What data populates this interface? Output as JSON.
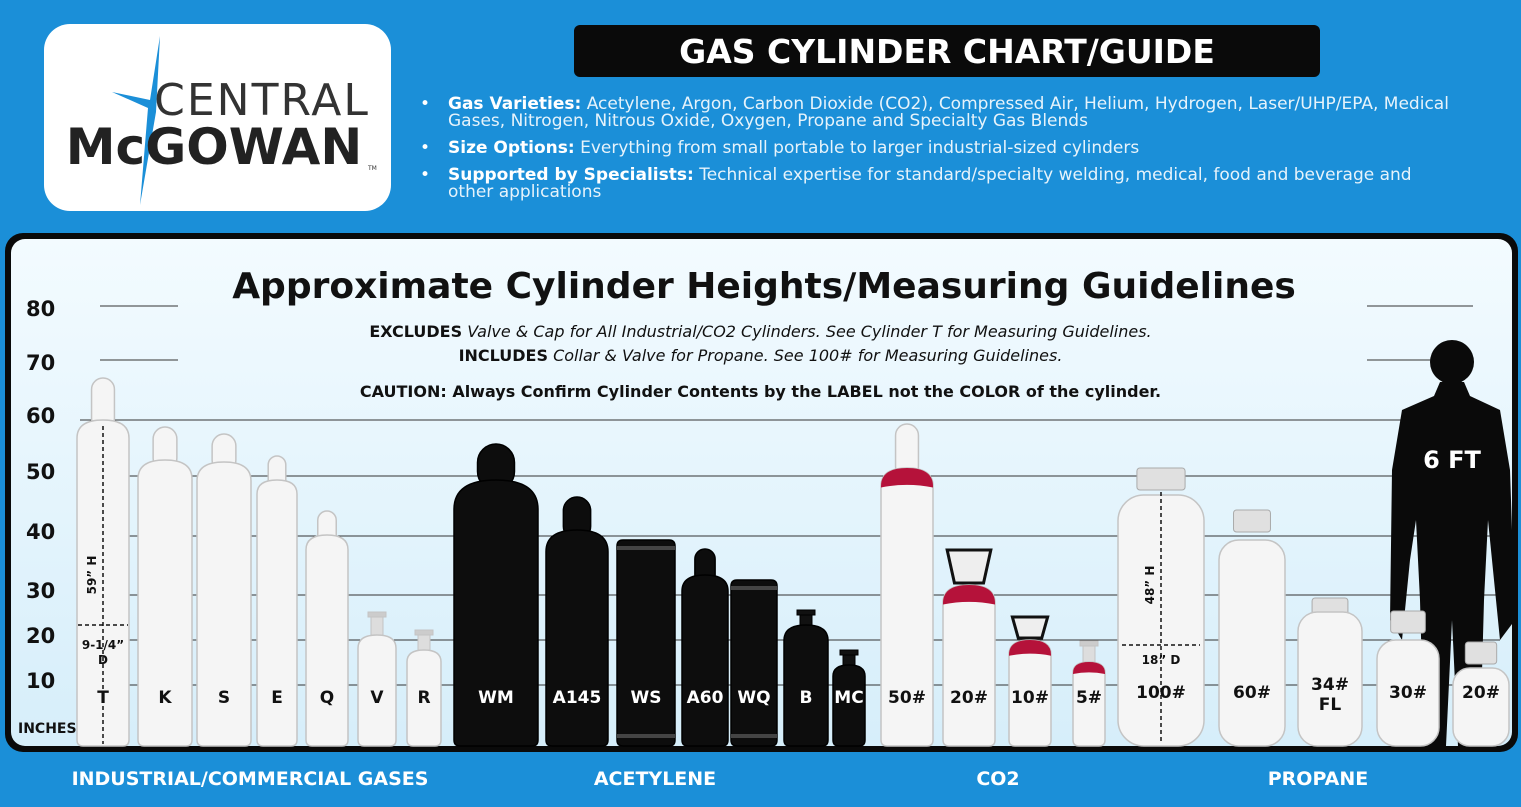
{
  "logo": {
    "line1": "CENTRAL",
    "line2": "McGOWAN",
    "tm": "TM"
  },
  "header": {
    "title": "GAS CYLINDER CHART/GUIDE"
  },
  "bullets": [
    {
      "head": "Gas Varieties:",
      "text": "Acetylene, Argon, Carbon Dioxide (CO2), Compressed Air, Helium, Hydrogen, Laser/UHP/EPA, Medical Gases, Nitrogen, Nitrous Oxide, Oxygen, Propane and Specialty Gas Blends"
    },
    {
      "head": "Size Options:",
      "text": "Everything from small portable to larger industrial-sized cylinders"
    },
    {
      "head": "Supported by Specialists:",
      "text": "Technical expertise for standard/specialty welding, medical, food and beverage and other applications"
    }
  ],
  "panel": {
    "title": "Approximate Cylinder Heights/Measuring Guidelines",
    "notes": [
      {
        "bold": "EXCLUDES",
        "text": "Valve & Cap for All Industrial/CO2 Cylinders.  See Cylinder T for Measuring Guidelines."
      },
      {
        "bold": "INCLUDES",
        "text": "Collar & Valve for Propane.  See 100# for Measuring Guidelines."
      }
    ],
    "caution": "CAUTION: Always Confirm Cylinder Contents by the LABEL not the COLOR of the cylinder.",
    "scale": [
      "80",
      "70",
      "60",
      "50",
      "40",
      "30",
      "20",
      "10"
    ],
    "scale_unit": "INCHES",
    "measures": {
      "t_height": "59” H",
      "t_width": "9-1/4”",
      "t_width_unit": "D",
      "p_height": "48” H",
      "p_width": "18” D"
    },
    "person": "6 FT",
    "cylinders": [
      {
        "label": "T"
      },
      {
        "label": "K"
      },
      {
        "label": "S"
      },
      {
        "label": "E"
      },
      {
        "label": "Q"
      },
      {
        "label": "V"
      },
      {
        "label": "R"
      },
      {
        "label": "WM"
      },
      {
        "label": "A145"
      },
      {
        "label": "WS"
      },
      {
        "label": "A60"
      },
      {
        "label": "WQ"
      },
      {
        "label": "B"
      },
      {
        "label": "MC"
      },
      {
        "label": "50#"
      },
      {
        "label": "20#"
      },
      {
        "label": "10#"
      },
      {
        "label": "5#"
      },
      {
        "label": "100#"
      },
      {
        "label": "60#"
      },
      {
        "label": "34#",
        "sublabel": "FL"
      },
      {
        "label": "30#"
      },
      {
        "label": "20#"
      }
    ],
    "groups": [
      "INDUSTRIAL/COMMERCIAL GASES",
      "ACETYLENE",
      "CO2",
      "PROPANE"
    ]
  }
}
